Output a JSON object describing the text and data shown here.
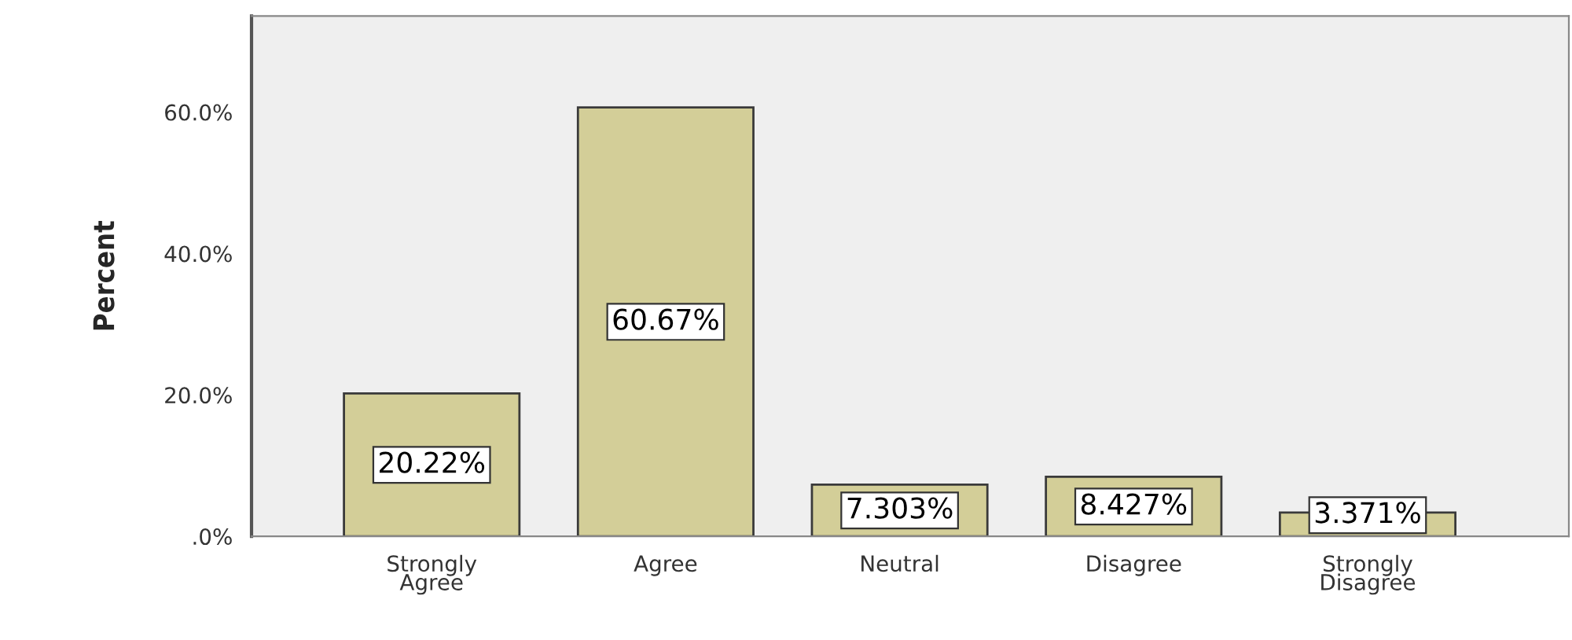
{
  "chart_data": {
    "type": "bar",
    "ylabel": "Percent",
    "categories": [
      "Strongly\nAgree",
      "Agree",
      "Neutral",
      "Disagree",
      "Strongly\nDisagree"
    ],
    "values": [
      20.22,
      60.67,
      7.303,
      8.427,
      3.371
    ],
    "value_labels": [
      "20.22%",
      "60.67%",
      "7.303%",
      "8.427%",
      "3.371%"
    ],
    "color": "#d3ce98",
    "ylim": [
      0,
      73.6
    ],
    "yticks": [
      {
        "value": 0,
        "label": ".0%"
      },
      {
        "value": 20,
        "label": "20.0%"
      },
      {
        "value": 40,
        "label": "40.0%"
      },
      {
        "value": 60,
        "label": "60.0%"
      }
    ],
    "grid": false,
    "legend": false
  }
}
